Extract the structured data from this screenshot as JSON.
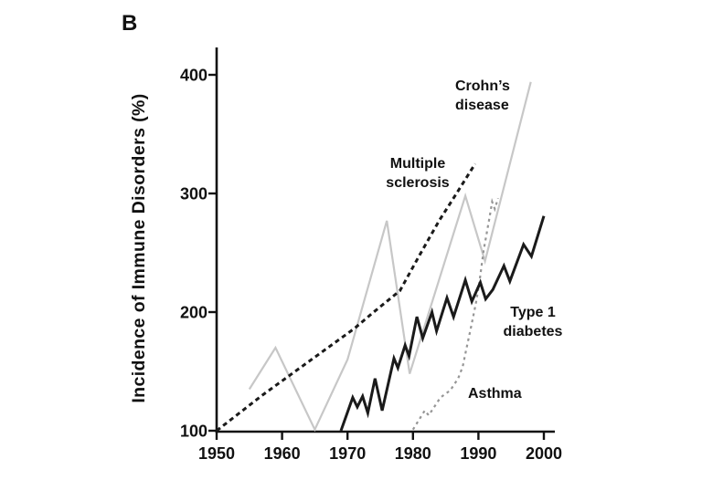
{
  "figure": {
    "panel_label": "B",
    "background_color": "#ffffff",
    "text_color": "#111111"
  },
  "chart_data": {
    "type": "line",
    "title": "",
    "xlabel": "",
    "ylabel": "Incidence of Immune Disorders (%)",
    "xlim": [
      1950,
      2000
    ],
    "ylim": [
      100,
      400
    ],
    "x_ticks": [
      "1950",
      "1960",
      "1970",
      "1980",
      "1990",
      "2000"
    ],
    "y_ticks": [
      "400",
      "300",
      "200",
      "100"
    ],
    "y_tick_values": [
      400,
      300,
      200,
      100
    ],
    "x_tick_values": [
      1950,
      1960,
      1970,
      1980,
      1990,
      2000
    ],
    "grid": false,
    "legend_position": "inline-annotations",
    "series": [
      {
        "name": "Crohn's disease",
        "color": "#c7c7c7",
        "line_style": "solid",
        "width": 2.2,
        "points": [
          [
            1955,
            135
          ],
          [
            1959,
            170
          ],
          [
            1965,
            101
          ],
          [
            1970,
            160
          ],
          [
            1976,
            277
          ],
          [
            1979.5,
            148
          ],
          [
            1988,
            298
          ],
          [
            1991,
            243
          ],
          [
            1998,
            394
          ]
        ]
      },
      {
        "name": "Asthma",
        "color": "#969696",
        "line_style": "dashed",
        "dash": "3 4",
        "width": 2.2,
        "points": [
          [
            1980,
            101
          ],
          [
            1981.8,
            117
          ],
          [
            1982.4,
            113
          ],
          [
            1984.2,
            128
          ],
          [
            1985.7,
            134
          ],
          [
            1986.9,
            144
          ],
          [
            1987.6,
            154
          ],
          [
            1988.2,
            170
          ],
          [
            1988.9,
            188
          ],
          [
            1989.6,
            207
          ],
          [
            1990.1,
            223
          ],
          [
            1990.8,
            252
          ],
          [
            1991.7,
            280
          ],
          [
            1992.1,
            293
          ],
          [
            1992.5,
            287
          ],
          [
            1993,
            296
          ]
        ]
      },
      {
        "name": "Multiple sclerosis",
        "color": "#1a1a1a",
        "line_style": "dashed",
        "dash": "5 4",
        "width": 3,
        "points": [
          [
            1950,
            100
          ],
          [
            1957,
            130
          ],
          [
            1964,
            158
          ],
          [
            1971,
            186
          ],
          [
            1974,
            200
          ],
          [
            1978,
            218
          ],
          [
            1981,
            248
          ],
          [
            1984,
            277
          ],
          [
            1987,
            303
          ],
          [
            1989.5,
            325
          ]
        ]
      },
      {
        "name": "Type 1 diabetes",
        "color": "#1a1a1a",
        "line_style": "solid",
        "width": 3,
        "points": [
          [
            1969,
            100
          ],
          [
            1970.8,
            128
          ],
          [
            1971.5,
            120
          ],
          [
            1972.3,
            129
          ],
          [
            1973.1,
            115
          ],
          [
            1974.2,
            144
          ],
          [
            1975.3,
            117
          ],
          [
            1977.1,
            161
          ],
          [
            1977.7,
            153
          ],
          [
            1978.8,
            172
          ],
          [
            1979.4,
            163
          ],
          [
            1980.6,
            196
          ],
          [
            1981.5,
            178
          ],
          [
            1982.9,
            200
          ],
          [
            1983.6,
            184
          ],
          [
            1985.2,
            212
          ],
          [
            1986.2,
            196
          ],
          [
            1988,
            227
          ],
          [
            1989,
            209
          ],
          [
            1990.3,
            225
          ],
          [
            1991.1,
            211
          ],
          [
            1992.2,
            219
          ],
          [
            1993.9,
            239
          ],
          [
            1994.8,
            226
          ],
          [
            1996.9,
            257
          ],
          [
            1998.1,
            247
          ],
          [
            2000,
            281
          ]
        ]
      }
    ],
    "annotations": {
      "crohns": {
        "line1": "Crohn’s",
        "line2": "disease"
      },
      "multiple_sclerosis": {
        "line1": "Multiple",
        "line2": "sclerosis"
      },
      "type1_diabetes": {
        "line1": "Type 1",
        "line2": "diabetes"
      },
      "asthma": {
        "line1": "Asthma"
      }
    }
  }
}
